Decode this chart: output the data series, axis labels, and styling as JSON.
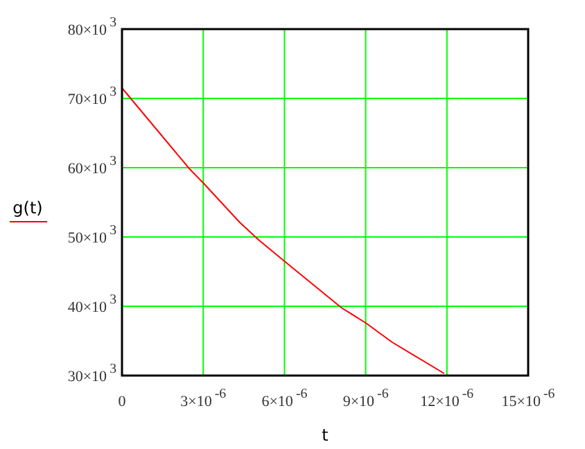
{
  "chart_data": {
    "type": "line",
    "xlabel": "t",
    "ylabel": "g(t)",
    "x": [
      0,
      2.5e-06,
      3e-06,
      4.35e-06,
      5.04e-06,
      6e-06,
      8.1e-06,
      9e-06,
      9.98e-06,
      1.19e-05
    ],
    "series": [
      {
        "color": "#ff0000",
        "values": [
          71500,
          59800,
          57800,
          52100,
          49600,
          46500,
          39800,
          37600,
          34800,
          30300
        ]
      }
    ],
    "xlim": [
      0,
      1.5e-05
    ],
    "xticks": [
      0,
      {
        "value": 3e-06,
        "label": "3×10$^{-6}$"
      },
      {
        "value": 6e-06,
        "label": "6×10$^{-6}$"
      },
      {
        "value": 9e-06,
        "label": "9×10$^{-6}$"
      },
      {
        "value": 1.2e-05,
        "label": "12×10$^{-6}$"
      },
      {
        "value": 1.5e-05,
        "label": "15×10$^{-6}$"
      }
    ],
    "ylim": [
      30000,
      80000
    ],
    "yticks": [
      {
        "value": 30000,
        "label": "30×10$^{3}$"
      },
      {
        "value": 40000,
        "label": "40×10$^{3}$"
      },
      {
        "value": 50000,
        "label": "50×10$^{3}$"
      },
      {
        "value": 60000,
        "label": "60×10$^{3}$"
      },
      {
        "value": 70000,
        "label": "70×10$^{3}$"
      },
      {
        "value": 80000,
        "label": "80×10$^{3}$"
      }
    ],
    "grid": true,
    "marker": "none",
    "line_style": "solid"
  }
}
